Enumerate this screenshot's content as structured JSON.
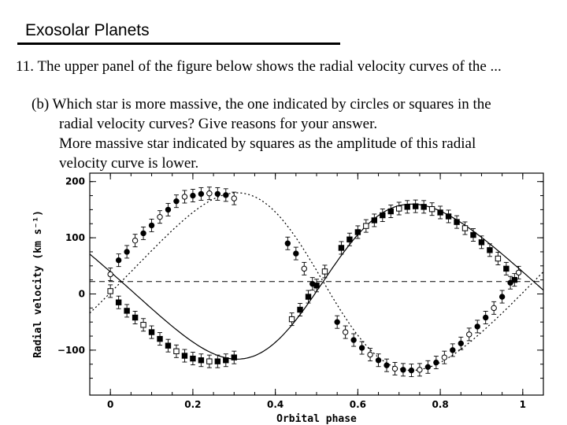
{
  "header": {
    "title": "Exosolar Planets"
  },
  "question": {
    "text": "11. The upper panel of the figure below shows the radial velocity curves of the ..."
  },
  "part_b": {
    "line1": "(b) Which star is more massive, the one indicated by circles or squares in the",
    "line2": "radial velocity curves?  Give reasons for your answer.",
    "line3": "More massive star indicated by squares as the amplitude of this radial",
    "line4": "velocity curve is lower."
  },
  "chart_data": {
    "type": "scatter",
    "xlabel": "Orbital phase",
    "ylabel": "Radial velocity (km s⁻¹)",
    "xlim": [
      -0.05,
      1.05
    ],
    "ylim": [
      -180,
      215
    ],
    "x_ticks": [
      0,
      0.2,
      0.4,
      0.6,
      0.8,
      1
    ],
    "x_tick_labels": [
      "0",
      "0.2",
      "0.4",
      "0.6",
      "0.8",
      "1"
    ],
    "y_ticks": [
      -100,
      0,
      100,
      200
    ],
    "y_tick_labels": [
      "−100",
      "0",
      "100",
      "200"
    ],
    "systemic_velocity": 22,
    "series": [
      {
        "marker": "circle",
        "x": [
          0.0,
          0.02,
          0.04,
          0.06,
          0.08,
          0.1,
          0.12,
          0.14,
          0.16,
          0.18,
          0.2,
          0.22,
          0.24,
          0.26,
          0.28,
          0.3,
          0.43,
          0.45,
          0.47,
          0.49,
          0.55,
          0.57,
          0.59,
          0.61,
          0.63,
          0.65,
          0.67,
          0.69,
          0.71,
          0.73,
          0.75,
          0.77,
          0.79,
          0.81,
          0.83,
          0.85,
          0.87,
          0.89,
          0.91,
          0.93,
          0.95,
          0.97,
          0.99
        ],
        "y": [
          35,
          60,
          75,
          95,
          108,
          122,
          137,
          150,
          165,
          173,
          175,
          178,
          179,
          178,
          176,
          170,
          90,
          72,
          45,
          18,
          -50,
          -68,
          -82,
          -96,
          -108,
          -118,
          -127,
          -133,
          -135,
          -136,
          -135,
          -130,
          -122,
          -113,
          -100,
          -88,
          -72,
          -58,
          -42,
          -25,
          -5,
          20,
          38
        ]
      },
      {
        "marker": "square",
        "x": [
          0.0,
          0.02,
          0.04,
          0.06,
          0.08,
          0.1,
          0.12,
          0.14,
          0.16,
          0.18,
          0.2,
          0.22,
          0.24,
          0.26,
          0.28,
          0.3,
          0.44,
          0.46,
          0.48,
          0.5,
          0.52,
          0.56,
          0.58,
          0.6,
          0.62,
          0.64,
          0.66,
          0.68,
          0.7,
          0.72,
          0.74,
          0.76,
          0.78,
          0.8,
          0.82,
          0.84,
          0.86,
          0.88,
          0.9,
          0.92,
          0.94,
          0.96,
          0.98
        ],
        "y": [
          5,
          -15,
          -30,
          -42,
          -55,
          -68,
          -80,
          -92,
          -102,
          -110,
          -115,
          -118,
          -120,
          -120,
          -118,
          -113,
          -45,
          -28,
          -5,
          15,
          40,
          82,
          97,
          110,
          121,
          131,
          140,
          147,
          152,
          155,
          156,
          155,
          151,
          145,
          138,
          128,
          117,
          105,
          92,
          78,
          63,
          45,
          25
        ]
      }
    ]
  }
}
